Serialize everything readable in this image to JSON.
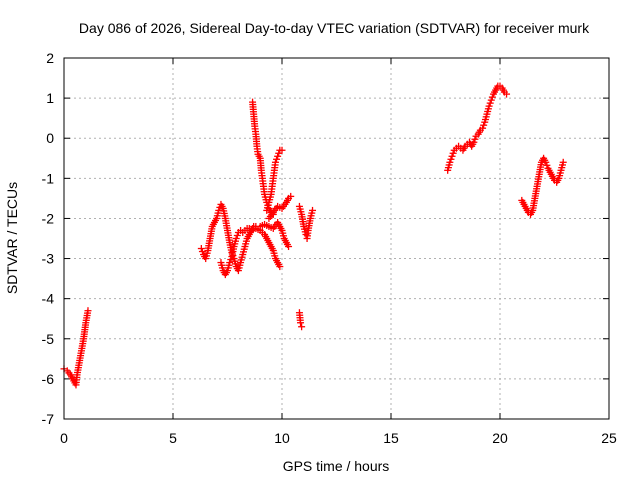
{
  "chart_data": {
    "type": "scatter",
    "title": "Day 086 of 2026, Sidereal Day-to-day VTEC variation (SDTVAR) for receiver murk",
    "xlabel": "GPS time / hours",
    "ylabel": "SDTVAR / TECUs",
    "xlim": [
      0,
      25
    ],
    "ylim": [
      -7,
      2
    ],
    "xticks": [
      0,
      5,
      10,
      15,
      20,
      25
    ],
    "yticks": [
      -7,
      -6,
      -5,
      -4,
      -3,
      -2,
      -1,
      0,
      1,
      2
    ],
    "xtick_labels": [
      "0",
      "5",
      "10",
      "15",
      "20",
      "25"
    ],
    "ytick_labels": [
      "-7",
      "-6",
      "-5",
      "-4",
      "-3",
      "-2",
      "-1",
      "0",
      "1",
      "2"
    ],
    "grid": true,
    "marker": "+",
    "marker_color": "#ff0000",
    "series_segments": [
      {
        "name": "seg1",
        "points": [
          [
            0.0,
            -5.75
          ],
          [
            0.15,
            -5.8
          ],
          [
            0.3,
            -5.9
          ],
          [
            0.45,
            -6.05
          ],
          [
            0.55,
            -6.15
          ],
          [
            0.6,
            -5.9
          ],
          [
            0.7,
            -5.6
          ],
          [
            0.8,
            -5.3
          ],
          [
            0.9,
            -5.0
          ],
          [
            1.0,
            -4.6
          ],
          [
            1.1,
            -4.3
          ]
        ]
      },
      {
        "name": "seg2",
        "points": [
          [
            6.3,
            -2.75
          ],
          [
            6.4,
            -2.9
          ],
          [
            6.5,
            -3.0
          ],
          [
            6.6,
            -2.8
          ],
          [
            6.7,
            -2.5
          ],
          [
            6.8,
            -2.2
          ],
          [
            6.9,
            -2.1
          ],
          [
            7.0,
            -2.0
          ],
          [
            7.1,
            -1.8
          ],
          [
            7.2,
            -1.65
          ],
          [
            7.3,
            -1.75
          ],
          [
            7.4,
            -2.0
          ],
          [
            7.5,
            -2.3
          ],
          [
            7.6,
            -2.6
          ],
          [
            7.7,
            -2.85
          ],
          [
            7.8,
            -3.0
          ],
          [
            7.9,
            -3.2
          ],
          [
            8.0,
            -3.3
          ],
          [
            8.1,
            -3.1
          ],
          [
            8.2,
            -2.9
          ],
          [
            8.3,
            -2.7
          ],
          [
            8.4,
            -2.5
          ],
          [
            8.5,
            -2.4
          ],
          [
            8.6,
            -2.3
          ],
          [
            8.7,
            -2.25
          ],
          [
            8.8,
            -2.2
          ],
          [
            9.0,
            -2.2
          ],
          [
            9.2,
            -2.15
          ],
          [
            9.4,
            -2.2
          ],
          [
            9.6,
            -2.25
          ],
          [
            9.8,
            -2.1
          ],
          [
            10.0,
            -2.3
          ],
          [
            10.1,
            -2.5
          ],
          [
            10.2,
            -2.6
          ],
          [
            10.3,
            -2.7
          ]
        ]
      },
      {
        "name": "seg3",
        "points": [
          [
            7.2,
            -3.1
          ],
          [
            7.3,
            -3.3
          ],
          [
            7.4,
            -3.4
          ],
          [
            7.5,
            -3.3
          ],
          [
            7.6,
            -3.1
          ],
          [
            7.7,
            -2.95
          ],
          [
            7.8,
            -2.7
          ],
          [
            7.9,
            -2.5
          ],
          [
            8.0,
            -2.35
          ],
          [
            8.1,
            -2.3
          ],
          [
            8.2,
            -2.35
          ],
          [
            8.3,
            -2.3
          ],
          [
            8.4,
            -2.25
          ],
          [
            8.5,
            -2.25
          ],
          [
            8.6,
            -2.3
          ],
          [
            8.7,
            -2.2
          ],
          [
            8.8,
            -2.25
          ],
          [
            9.0,
            -2.3
          ],
          [
            9.1,
            -2.35
          ],
          [
            9.2,
            -2.4
          ],
          [
            9.3,
            -2.5
          ],
          [
            9.4,
            -2.6
          ],
          [
            9.5,
            -2.7
          ],
          [
            9.6,
            -2.8
          ],
          [
            9.7,
            -3.0
          ],
          [
            9.8,
            -3.1
          ],
          [
            9.9,
            -3.2
          ]
        ]
      },
      {
        "name": "seg4",
        "points": [
          [
            8.65,
            0.9
          ],
          [
            8.7,
            0.6
          ],
          [
            8.75,
            0.3
          ],
          [
            8.8,
            0.1
          ],
          [
            8.85,
            -0.2
          ],
          [
            8.9,
            -0.4
          ],
          [
            9.0,
            -0.5
          ],
          [
            9.05,
            -0.8
          ],
          [
            9.1,
            -1.0
          ],
          [
            9.15,
            -1.2
          ],
          [
            9.2,
            -1.4
          ],
          [
            9.3,
            -1.6
          ],
          [
            9.4,
            -1.75
          ],
          [
            9.5,
            -1.85
          ],
          [
            9.6,
            -1.9
          ]
        ]
      },
      {
        "name": "seg5",
        "points": [
          [
            9.3,
            -1.8
          ],
          [
            9.4,
            -1.6
          ],
          [
            9.5,
            -1.4
          ],
          [
            9.55,
            -1.2
          ],
          [
            9.6,
            -1.0
          ],
          [
            9.65,
            -0.8
          ],
          [
            9.7,
            -0.6
          ],
          [
            9.8,
            -0.45
          ],
          [
            9.9,
            -0.3
          ],
          [
            10.0,
            -0.3
          ]
        ]
      },
      {
        "name": "seg6",
        "points": [
          [
            9.4,
            -2.0
          ],
          [
            9.6,
            -1.85
          ],
          [
            9.8,
            -1.7
          ],
          [
            10.0,
            -1.75
          ],
          [
            10.2,
            -1.6
          ],
          [
            10.3,
            -1.5
          ],
          [
            10.4,
            -1.45
          ]
        ]
      },
      {
        "name": "seg7",
        "points": [
          [
            10.8,
            -4.35
          ],
          [
            10.85,
            -4.6
          ],
          [
            10.9,
            -4.7
          ]
        ]
      },
      {
        "name": "seg8",
        "points": [
          [
            10.8,
            -1.7
          ],
          [
            10.9,
            -1.9
          ],
          [
            11.0,
            -2.2
          ],
          [
            11.1,
            -2.4
          ],
          [
            11.15,
            -2.5
          ],
          [
            11.2,
            -2.3
          ],
          [
            11.3,
            -2.0
          ],
          [
            11.4,
            -1.8
          ]
        ]
      },
      {
        "name": "seg9",
        "points": [
          [
            17.6,
            -0.8
          ],
          [
            17.7,
            -0.6
          ],
          [
            17.8,
            -0.45
          ],
          [
            17.9,
            -0.3
          ],
          [
            18.0,
            -0.25
          ],
          [
            18.1,
            -0.2
          ],
          [
            18.2,
            -0.25
          ],
          [
            18.3,
            -0.3
          ],
          [
            18.4,
            -0.2
          ],
          [
            18.5,
            -0.15
          ],
          [
            18.6,
            -0.1
          ],
          [
            18.7,
            -0.2
          ],
          [
            18.8,
            -0.1
          ],
          [
            18.9,
            0.05
          ],
          [
            19.0,
            0.1
          ],
          [
            19.1,
            0.2
          ],
          [
            19.2,
            0.25
          ],
          [
            19.3,
            0.4
          ],
          [
            19.4,
            0.6
          ],
          [
            19.5,
            0.8
          ],
          [
            19.6,
            0.95
          ],
          [
            19.7,
            1.1
          ],
          [
            19.8,
            1.2
          ],
          [
            19.9,
            1.3
          ],
          [
            20.0,
            1.3
          ],
          [
            20.1,
            1.25
          ],
          [
            20.2,
            1.15
          ],
          [
            20.3,
            1.1
          ]
        ]
      },
      {
        "name": "seg10",
        "points": [
          [
            21.0,
            -1.55
          ],
          [
            21.1,
            -1.65
          ],
          [
            21.2,
            -1.75
          ],
          [
            21.3,
            -1.85
          ],
          [
            21.4,
            -1.9
          ],
          [
            21.5,
            -1.8
          ],
          [
            21.6,
            -1.5
          ],
          [
            21.7,
            -1.2
          ],
          [
            21.8,
            -0.9
          ],
          [
            21.9,
            -0.6
          ],
          [
            22.0,
            -0.5
          ],
          [
            22.1,
            -0.6
          ],
          [
            22.2,
            -0.75
          ],
          [
            22.3,
            -0.85
          ],
          [
            22.4,
            -0.95
          ],
          [
            22.5,
            -1.05
          ],
          [
            22.6,
            -1.1
          ],
          [
            22.7,
            -1.0
          ],
          [
            22.8,
            -0.8
          ],
          [
            22.9,
            -0.6
          ]
        ]
      }
    ]
  }
}
